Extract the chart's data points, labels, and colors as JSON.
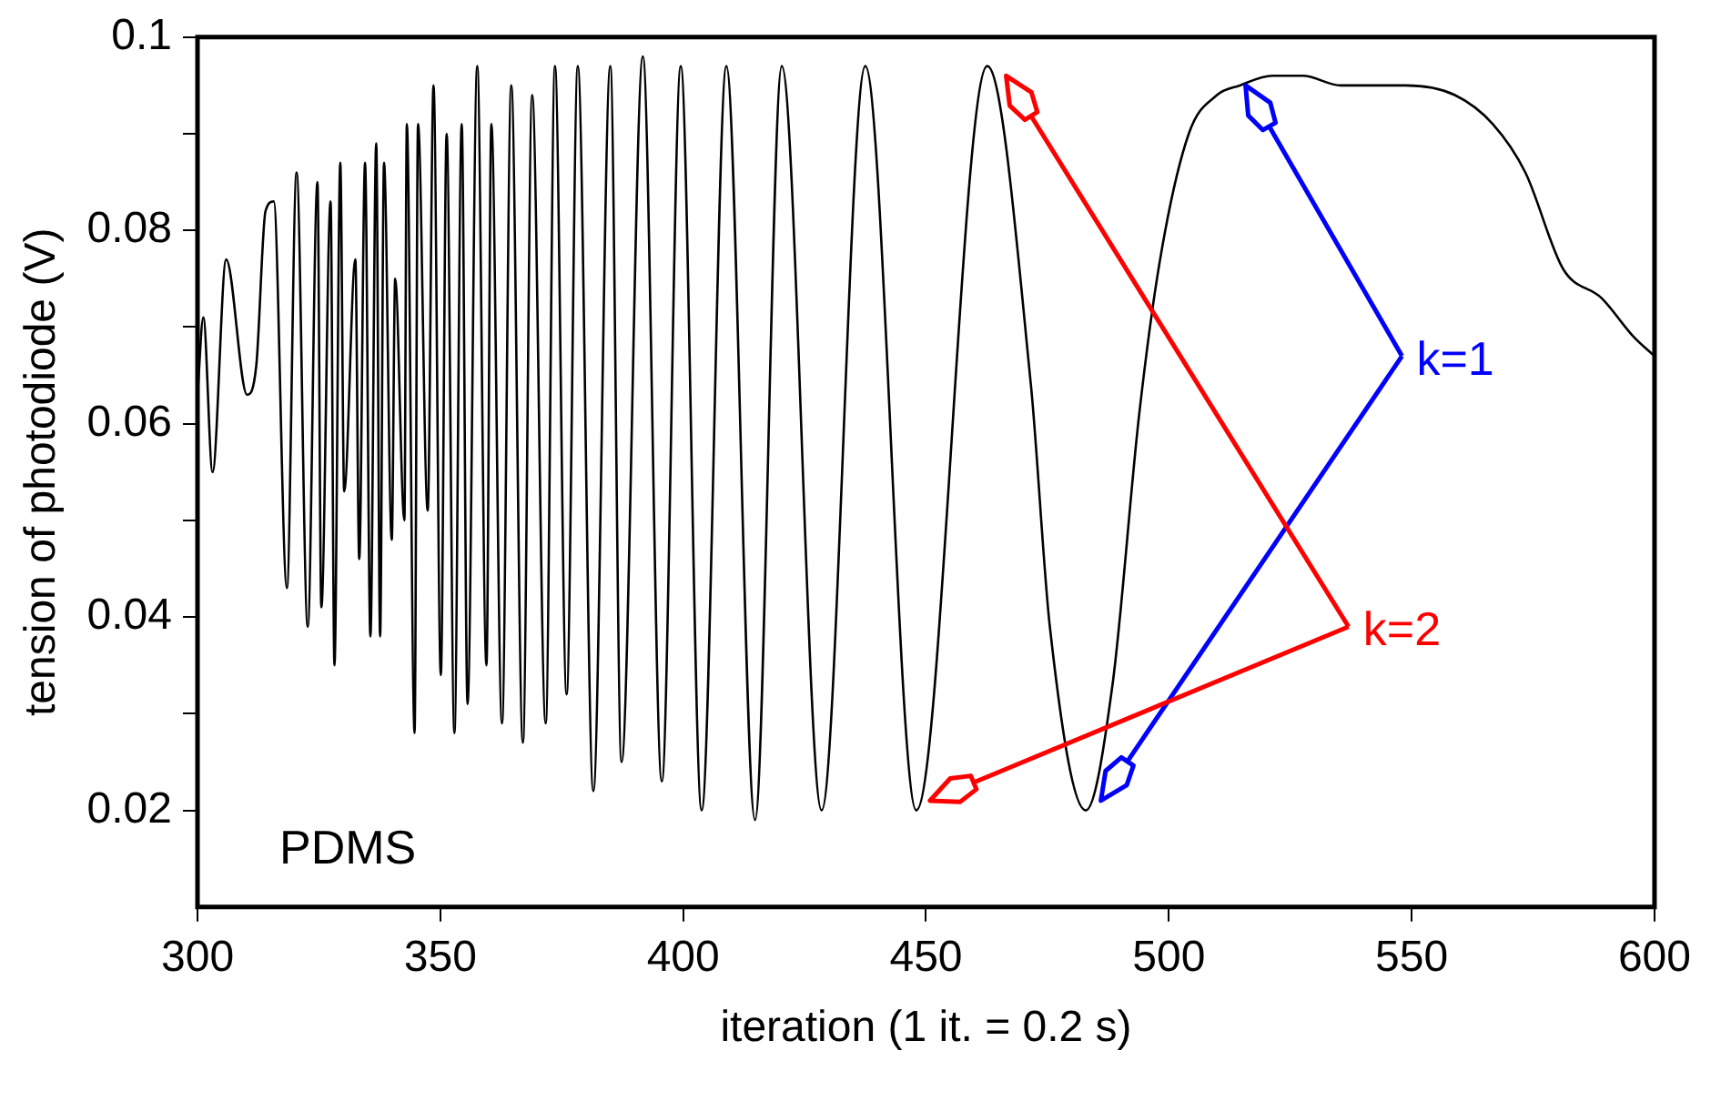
{
  "chart_data": {
    "type": "line",
    "xlabel": "iteration (1 it. = 0.2 s)",
    "ylabel": "tension of photodiode (V)",
    "xlim": [
      300,
      600
    ],
    "xticks": [
      300,
      350,
      400,
      450,
      500,
      550,
      600
    ],
    "ylim": [
      0.01,
      0.1
    ],
    "yticks": [
      0.02,
      {
        "value": 0.03,
        "label": null
      },
      0.04,
      {
        "value": 0.05,
        "label": null
      },
      0.06,
      {
        "value": 0.07,
        "label": null
      },
      0.08,
      {
        "value": 0.09,
        "label": null
      },
      0.1
    ],
    "grid": false,
    "legend": false,
    "marker": "none",
    "line_style": "solid",
    "series": [
      {
        "color": "#000000",
        "x": [
          300,
          301.2,
          303.1,
          305.9,
          310.2,
          312.1,
          314,
          315.7,
          318.4,
          320.4,
          322.7,
          324.7,
          325.5,
          327.4,
          328.2,
          329.4,
          330.2,
          332.5,
          333.3,
          334.5,
          335.6,
          336.8,
          337.6,
          338.4,
          340,
          340.7,
          342.6,
          343.1,
          344.7,
          345.4,
          347.4,
          348.6,
          350.1,
          351.3,
          352.9,
          354.4,
          355.6,
          357.6,
          359.5,
          360.5,
          362.7,
          364.6,
          367,
          368.9,
          371.7,
          373.6,
          376,
          378.3,
          381.5,
          385,
          387.3,
          391.7,
          395.6,
          399.5,
          403.8,
          408.9,
          414.8,
          420.3,
          428.5,
          437.5,
          448,
          462.6,
          471.6,
          475.5,
          482.9,
          488.4,
          493.9,
          498.2,
          504.1,
          509.9,
          514.6,
          521.3,
          527.6,
          535.4,
          548.7,
          558.9,
          566.7,
          573.4,
          581.2,
          589.1,
          595.7,
          600
        ],
        "values": [
          0.063,
          0.071,
          0.055,
          0.077,
          0.063,
          0.066,
          0.082,
          0.083,
          0.043,
          0.086,
          0.039,
          0.085,
          0.041,
          0.083,
          0.035,
          0.087,
          0.053,
          0.077,
          0.046,
          0.087,
          0.038,
          0.089,
          0.038,
          0.087,
          0.048,
          0.075,
          0.05,
          0.091,
          0.028,
          0.091,
          0.051,
          0.095,
          0.034,
          0.09,
          0.028,
          0.091,
          0.031,
          0.097,
          0.035,
          0.091,
          0.029,
          0.095,
          0.027,
          0.094,
          0.029,
          0.097,
          0.032,
          0.097,
          0.022,
          0.097,
          0.025,
          0.098,
          0.023,
          0.097,
          0.02,
          0.097,
          0.019,
          0.097,
          0.02,
          0.097,
          0.02,
          0.097,
          0.064,
          0.039,
          0.02,
          0.033,
          0.061,
          0.077,
          0.09,
          0.094,
          0.095,
          0.096,
          0.096,
          0.095,
          0.095,
          0.094,
          0.091,
          0.086,
          0.076,
          0.073,
          0.069,
          0.067
        ]
      }
    ],
    "annotations": [
      "k=1",
      "k=2",
      "PDMS"
    ]
  }
}
